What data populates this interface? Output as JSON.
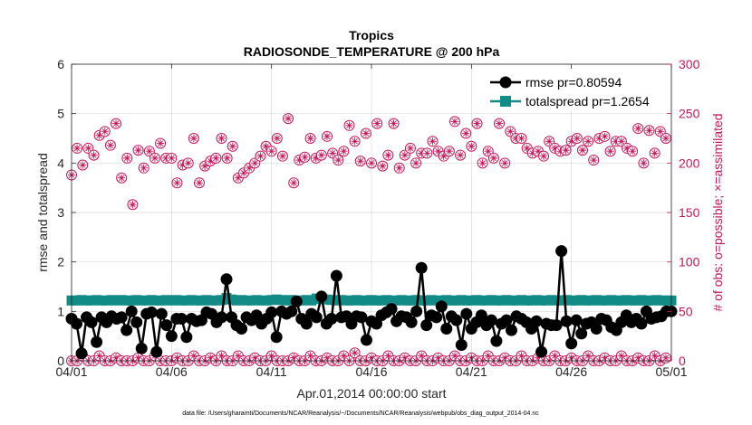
{
  "chart_data": {
    "type": "line",
    "title": "Tropics",
    "subtitle": "RADIOSONDE_TEMPERATURE @ 200 hPa",
    "xlabel": "Apr.01,2014 00:00:00 start",
    "ylabel_left": "rmse and totalspread",
    "ylabel_right": "# of obs: o=possible; ×=assimilated",
    "footer": "data file: /Users/gharamti/Documents/NCAR/Reanalysis/~/Documents/NCAR/Reanalysis/webpub/obs_diag_output_2014-04.nc",
    "xlim": [
      0,
      30
    ],
    "ylim_left": [
      0,
      6
    ],
    "ylim_right": [
      0,
      300
    ],
    "x_ticks": [
      {
        "x": 0,
        "label": "04/01"
      },
      {
        "x": 5,
        "label": "04/06"
      },
      {
        "x": 10,
        "label": "04/11"
      },
      {
        "x": 15,
        "label": "04/16"
      },
      {
        "x": 20,
        "label": "04/21"
      },
      {
        "x": 25,
        "label": "04/26"
      },
      {
        "x": 30,
        "label": "05/01"
      }
    ],
    "y_ticks_left": [
      "0",
      "1",
      "2",
      "3",
      "4",
      "5",
      "6"
    ],
    "y_ticks_right": [
      "0",
      "50",
      "100",
      "150",
      "200",
      "250",
      "300"
    ],
    "legend": [
      {
        "label": "rmse pr=0.80594",
        "color": "#000000",
        "marker": "circle"
      },
      {
        "label": "totalspread pr=1.2654",
        "color": "#128a85",
        "marker": "square"
      }
    ],
    "colors": {
      "rmse": "#000000",
      "totalspread": "#128a85",
      "obs": "#c2185b",
      "grid": "#d9d9d9"
    },
    "x_step_days": 0.25,
    "series": [
      {
        "name": "rmse",
        "values": [
          0.85,
          0.75,
          0.15,
          0.88,
          0.78,
          0.38,
          0.88,
          0.78,
          0.9,
          0.85,
          0.88,
          0.62,
          1.0,
          0.78,
          0.25,
          0.95,
          0.98,
          0.18,
          0.95,
          0.72,
          0.5,
          0.85,
          0.85,
          0.48,
          0.85,
          0.8,
          0.82,
          0.98,
          0.95,
          0.78,
          0.88,
          1.65,
          0.88,
          0.72,
          0.65,
          0.88,
          0.82,
          0.92,
          0.75,
          0.85,
          0.98,
          0.48,
          1.0,
          0.95,
          1.0,
          1.2,
          0.85,
          0.75,
          0.95,
          0.88,
          1.3,
          0.75,
          0.85,
          1.72,
          0.88,
          0.9,
          0.75,
          0.9,
          0.88,
          0.42,
          0.8,
          0.75,
          0.92,
          0.98,
          1.05,
          0.8,
          0.9,
          0.88,
          0.78,
          1.0,
          1.88,
          0.72,
          0.92,
          0.88,
          1.1,
          0.65,
          0.9,
          0.82,
          0.32,
          0.95,
          0.65,
          0.78,
          0.92,
          0.72,
          0.82,
          0.4,
          0.75,
          0.82,
          0.62,
          0.9,
          0.85,
          0.78,
          0.65,
          0.8,
          0.18,
          0.75,
          0.72,
          0.72,
          2.22,
          0.8,
          0.35,
          0.82,
          0.55,
          0.75,
          0.78,
          0.65,
          0.85,
          0.82,
          0.68,
          0.62,
          0.78,
          0.92,
          0.78,
          0.85,
          0.75,
          1.0,
          0.85,
          0.88,
          0.9,
          1.0,
          1.0
        ]
      },
      {
        "name": "totalspread",
        "values": [
          1.22,
          1.22,
          1.23,
          1.22,
          1.22,
          1.23,
          1.22,
          1.22,
          1.23,
          1.22,
          1.23,
          1.22,
          1.22,
          1.23,
          1.22,
          1.22,
          1.23,
          1.22,
          1.22,
          1.23,
          1.22,
          1.23,
          1.22,
          1.22,
          1.23,
          1.22,
          1.22,
          1.23,
          1.22,
          1.22,
          1.23,
          1.27,
          1.24,
          1.22,
          1.23,
          1.22,
          1.22,
          1.23,
          1.22,
          1.22,
          1.23,
          1.24,
          1.23,
          1.22,
          1.23,
          1.22,
          1.22,
          1.23,
          1.22,
          1.26,
          1.25,
          1.24,
          1.23,
          1.22,
          1.23,
          1.22,
          1.22,
          1.23,
          1.22,
          1.22,
          1.23,
          1.22,
          1.22,
          1.23,
          1.22,
          1.22,
          1.23,
          1.22,
          1.22,
          1.23,
          1.22,
          1.22,
          1.23,
          1.22,
          1.22,
          1.23,
          1.22,
          1.22,
          1.23,
          1.22,
          1.22,
          1.23,
          1.22,
          1.22,
          1.23,
          1.22,
          1.22,
          1.23,
          1.22,
          1.22,
          1.23,
          1.22,
          1.22,
          1.23,
          1.22,
          1.22,
          1.23,
          1.22,
          1.22,
          1.23,
          1.22,
          1.22,
          1.23,
          1.22,
          1.22,
          1.23,
          1.22,
          1.22,
          1.23,
          1.22,
          1.22,
          1.23,
          1.22,
          1.22,
          1.23,
          1.22,
          1.22,
          1.23,
          1.22,
          1.22,
          1.22
        ]
      },
      {
        "name": "obs_possible",
        "axis": "right",
        "values": [
          188,
          215,
          198,
          215,
          208,
          228,
          232,
          218,
          240,
          185,
          205,
          158,
          213,
          195,
          212,
          205,
          220,
          205,
          205,
          180,
          198,
          200,
          225,
          180,
          197,
          202,
          205,
          225,
          205,
          217,
          185,
          190,
          195,
          200,
          207,
          217,
          212,
          225,
          207,
          245,
          180,
          203,
          206,
          225,
          205,
          208,
          227,
          210,
          203,
          212,
          238,
          222,
          202,
          230,
          200,
          240,
          197,
          208,
          240,
          195,
          208,
          215,
          200,
          210,
          210,
          222,
          212,
          207,
          212,
          242,
          208,
          230,
          217,
          240,
          200,
          212,
          205,
          240,
          200,
          232,
          225,
          225,
          215,
          210,
          212,
          207,
          222,
          215,
          212,
          213,
          222,
          225,
          213,
          222,
          203,
          225,
          227,
          212,
          222,
          222,
          215,
          212,
          235,
          200,
          233,
          210,
          232,
          225
        ],
        "x_step_days": 0.2778
      },
      {
        "name": "obs_assimilated",
        "axis": "right",
        "values": [
          0,
          0,
          5,
          0,
          0,
          5,
          0,
          0,
          3,
          0,
          0,
          0,
          3,
          0,
          0,
          5,
          0,
          0,
          0,
          3,
          0,
          0,
          5,
          0,
          0,
          3,
          0,
          5,
          0,
          0,
          5,
          0,
          0,
          3,
          0,
          0,
          5,
          0,
          0,
          0,
          3,
          0,
          0,
          5,
          0,
          0,
          3,
          0,
          0,
          5,
          0,
          8,
          0,
          0,
          3,
          0,
          0,
          5,
          0,
          0,
          3,
          0,
          0,
          5,
          0,
          0,
          3,
          0,
          0,
          5,
          0,
          0,
          3,
          0,
          0,
          5,
          0,
          0,
          3,
          0,
          0,
          5,
          0,
          0,
          3,
          0,
          0,
          5,
          0,
          0,
          3,
          0,
          0,
          5,
          0,
          0,
          3,
          0,
          0,
          5,
          0,
          0,
          3,
          0,
          0,
          5,
          0,
          3
        ],
        "x_step_days": 0.2778
      }
    ]
  }
}
